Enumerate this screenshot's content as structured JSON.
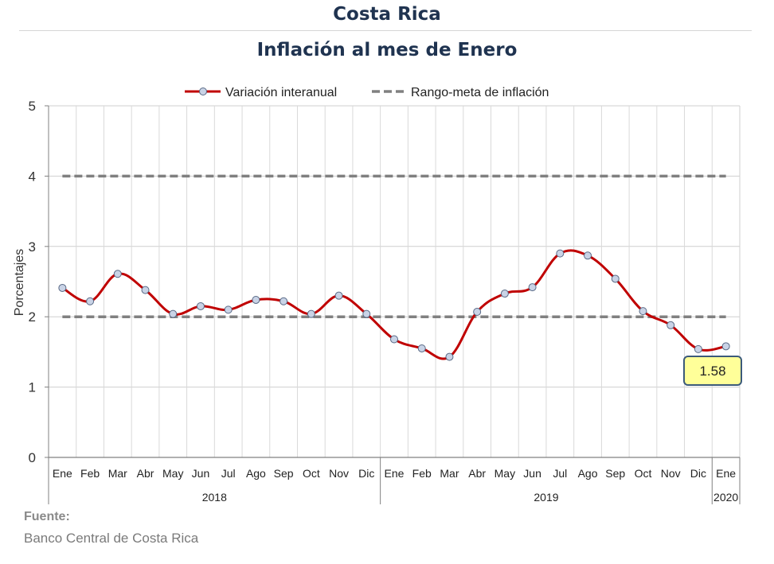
{
  "header": {
    "title": "Costa Rica",
    "subtitle": "Inflación al mes de Enero"
  },
  "source": {
    "label": "Fuente:",
    "text": "Banco Central de Costa Rica"
  },
  "colors": {
    "series": "#c00000",
    "target": "#808080",
    "marker_fill": "#c9d3e6",
    "callout_fill": "#ffff99",
    "callout_border": "#3b5a7a",
    "title": "#1f3350"
  },
  "chart_data": {
    "type": "line",
    "ylabel": "Porcentajes",
    "ylim": [
      0,
      5
    ],
    "yticks": [
      "0",
      "1",
      "2",
      "3",
      "4",
      "5"
    ],
    "grid": true,
    "legend_position": "top-center",
    "categories": [
      "Ene",
      "Feb",
      "Mar",
      "Abr",
      "May",
      "Jun",
      "Jul",
      "Ago",
      "Sep",
      "Oct",
      "Nov",
      "Dic",
      "Ene",
      "Feb",
      "Mar",
      "Abr",
      "May",
      "Jun",
      "Jul",
      "Ago",
      "Sep",
      "Oct",
      "Nov",
      "Dic",
      "Ene"
    ],
    "year_groups": [
      {
        "label": "2018",
        "start": 0,
        "count": 12
      },
      {
        "label": "2019",
        "start": 12,
        "count": 12
      },
      {
        "label": "2020",
        "start": 24,
        "count": 1
      }
    ],
    "series": [
      {
        "name": "Variación interanual",
        "values": [
          2.41,
          2.22,
          2.61,
          2.38,
          2.04,
          2.15,
          2.1,
          2.24,
          2.22,
          2.04,
          2.3,
          2.04,
          1.68,
          1.55,
          1.43,
          2.07,
          2.33,
          2.42,
          2.9,
          2.87,
          2.54,
          2.08,
          1.88,
          1.54,
          1.58
        ]
      },
      {
        "name": "Rango-meta de inflación",
        "lower": 2,
        "upper": 4,
        "style": "dashed"
      }
    ],
    "annotation": {
      "index": 24,
      "text": "1.58"
    }
  }
}
